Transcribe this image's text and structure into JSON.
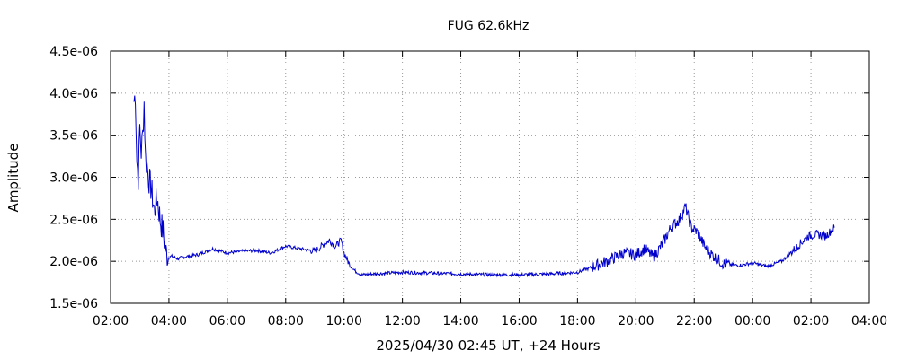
{
  "chart_data": {
    "type": "line",
    "title": "FUG 62.6kHz",
    "xlabel": "2025/04/30 02:45 UT, +24 Hours",
    "ylabel": "Amplitude",
    "x_unit": "hours",
    "xlim": [
      2,
      28
    ],
    "ylim": [
      1.5e-06,
      4.5e-06
    ],
    "x_ticks": [
      2,
      4,
      6,
      8,
      10,
      12,
      14,
      16,
      18,
      20,
      22,
      24,
      26,
      28
    ],
    "x_tick_labels": [
      "02:00",
      "04:00",
      "06:00",
      "08:00",
      "10:00",
      "12:00",
      "14:00",
      "16:00",
      "18:00",
      "20:00",
      "22:00",
      "00:00",
      "02:00",
      "04:00"
    ],
    "y_ticks": [
      1.5e-06,
      2e-06,
      2.5e-06,
      3e-06,
      3.5e-06,
      4e-06,
      4.5e-06
    ],
    "y_tick_labels": [
      "1.5e-06",
      "2.0e-06",
      "2.5e-06",
      "3.0e-06",
      "3.5e-06",
      "4.0e-06",
      "4.5e-06"
    ],
    "grid": true,
    "line_color": "#0000cc",
    "series": [
      {
        "x": [
          2.8,
          2.85,
          2.9,
          2.95,
          3.0,
          3.05,
          3.1,
          3.15,
          3.2,
          3.25,
          3.3,
          3.4,
          3.5,
          3.6,
          3.7,
          3.8,
          3.9,
          4.0,
          4.1,
          4.3,
          4.5,
          5.0,
          5.5,
          6.0,
          6.5,
          7.0,
          7.5,
          8.0,
          8.5,
          9.0,
          9.3,
          9.5,
          9.7,
          9.9,
          10.0,
          10.2,
          10.4,
          10.6,
          11.0,
          12.0,
          13.0,
          14.0,
          15.0,
          16.0,
          17.0,
          17.5,
          18.0,
          18.5,
          19.0,
          19.3,
          19.6,
          20.0,
          20.3,
          20.6,
          20.9,
          21.2,
          21.5,
          21.7,
          21.9,
          22.1,
          22.4,
          22.7,
          23.0,
          23.5,
          24.0,
          24.5,
          25.0,
          25.3,
          25.6,
          25.9,
          26.2,
          26.5,
          26.8
        ],
        "y": [
          3.9e-06,
          4e-06,
          3.2e-06,
          3e-06,
          3.6e-06,
          3.3e-06,
          3.5e-06,
          3.9e-06,
          3.2e-06,
          3.15e-06,
          3e-06,
          2.85e-06,
          2.6e-06,
          2.75e-06,
          2.5e-06,
          2.35e-06,
          2.1e-06,
          2.05e-06,
          2.06e-06,
          2.03e-06,
          2.05e-06,
          2.08e-06,
          2.15e-06,
          2.1e-06,
          2.12e-06,
          2.13e-06,
          2.1e-06,
          2.18e-06,
          2.15e-06,
          2.12e-06,
          2.2e-06,
          2.25e-06,
          2.18e-06,
          2.25e-06,
          2.1e-06,
          1.95e-06,
          1.88e-06,
          1.84e-06,
          1.85e-06,
          1.87e-06,
          1.86e-06,
          1.85e-06,
          1.84e-06,
          1.84e-06,
          1.85e-06,
          1.86e-06,
          1.87e-06,
          1.93e-06,
          2e-06,
          2.05e-06,
          2.1e-06,
          2.08e-06,
          2.15e-06,
          2.05e-06,
          2.2e-06,
          2.4e-06,
          2.5e-06,
          2.65e-06,
          2.4e-06,
          2.35e-06,
          2.15e-06,
          2.05e-06,
          1.97e-06,
          1.95e-06,
          1.98e-06,
          1.94e-06,
          2e-06,
          2.1e-06,
          2.2e-06,
          2.3e-06,
          2.32e-06,
          2.3e-06,
          2.4e-06
        ]
      }
    ]
  }
}
